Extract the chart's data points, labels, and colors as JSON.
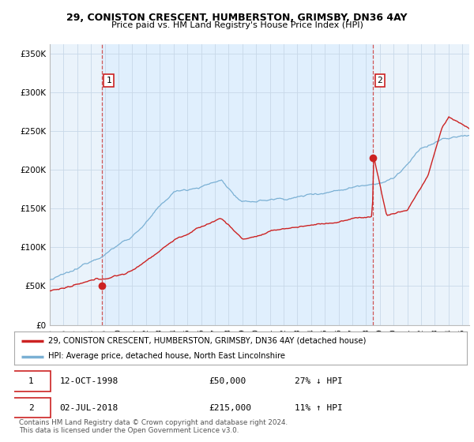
{
  "title_line1": "29, CONISTON CRESCENT, HUMBERSTON, GRIMSBY, DN36 4AY",
  "title_line2": "Price paid vs. HM Land Registry's House Price Index (HPI)",
  "ylabel_ticks": [
    "£0",
    "£50K",
    "£100K",
    "£150K",
    "£200K",
    "£250K",
    "£300K",
    "£350K"
  ],
  "ytick_values": [
    0,
    50000,
    100000,
    150000,
    200000,
    250000,
    300000,
    350000
  ],
  "ylim": [
    0,
    362000
  ],
  "xlim_start": 1995.0,
  "xlim_end": 2025.5,
  "marker1_x": 1998.79,
  "marker1_y": 50000,
  "marker2_x": 2018.5,
  "marker2_y": 215000,
  "vline1_x": 1998.79,
  "vline2_x": 2018.5,
  "legend_line1": "29, CONISTON CRESCENT, HUMBERSTON, GRIMSBY, DN36 4AY (detached house)",
  "legend_line2": "HPI: Average price, detached house, North East Lincolnshire",
  "table_row1_date": "12-OCT-1998",
  "table_row1_price": "£50,000",
  "table_row1_hpi": "27% ↓ HPI",
  "table_row2_date": "02-JUL-2018",
  "table_row2_price": "£215,000",
  "table_row2_hpi": "11% ↑ HPI",
  "footer": "Contains HM Land Registry data © Crown copyright and database right 2024.\nThis data is licensed under the Open Government Licence v3.0.",
  "red_color": "#cc2222",
  "blue_color": "#7ab0d4",
  "bg_color": "#ffffff",
  "chart_bg": "#eaf3fb",
  "grid_color": "#c8d8e8",
  "vline_color": "#cc4444",
  "shade_color": "#ddeeff"
}
